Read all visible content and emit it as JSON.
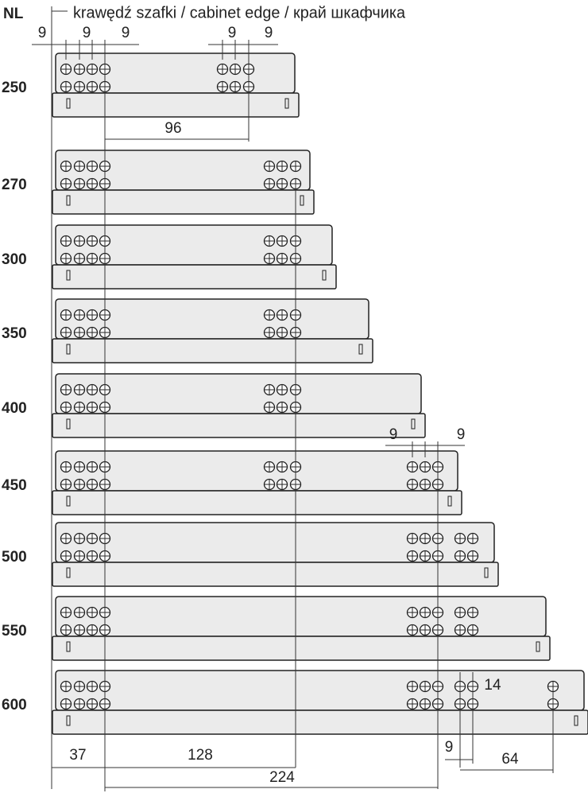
{
  "header": {
    "nl_label": "NL",
    "edge_label": "krawędź szafki / cabinet edge / край шкафчика"
  },
  "rows": [
    "250",
    "270",
    "300",
    "350",
    "400",
    "450",
    "500",
    "550",
    "600"
  ],
  "dimensions": {
    "top_left": "9",
    "top_hole_a": "9",
    "top_hole_b": "9",
    "top_mid_a": "9",
    "top_mid_b": "9",
    "span_96": "96",
    "mid_a": "9",
    "mid_b": "9",
    "hole_14": "14",
    "bottom_37": "37",
    "bottom_128": "128",
    "bottom_224": "224",
    "bottom_9": "9",
    "bottom_64": "64"
  }
}
